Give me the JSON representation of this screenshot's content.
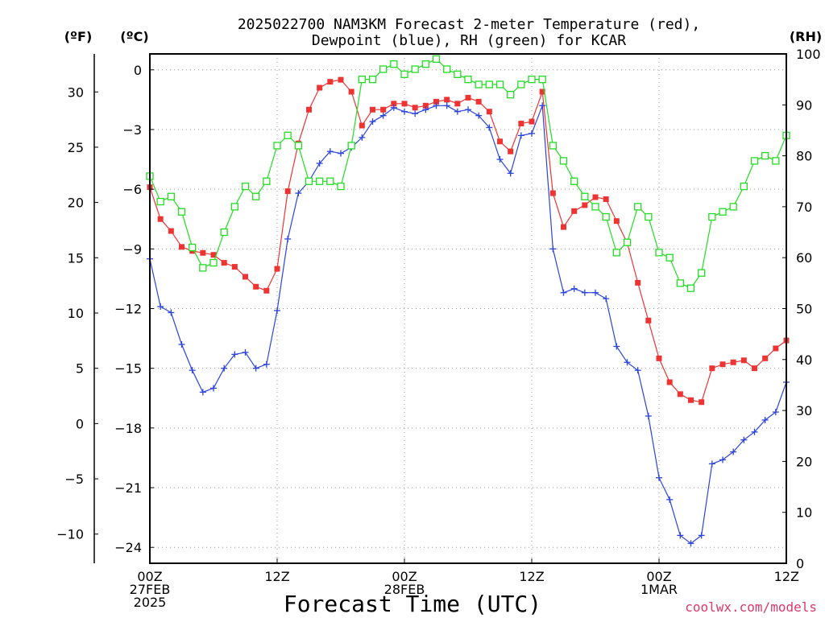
{
  "title_line1": "2025022700 NAM3KM Forecast 2-meter Temperature (red),",
  "title_line2": "Dewpoint (blue), RH (green) for KCAR",
  "unit_f": "(ºF)",
  "unit_c": "(ºC)",
  "unit_rh": "(RH)",
  "xlabel": "Forecast Time (UTC)",
  "credit": "coolwx.com/models",
  "chart_data": {
    "type": "line",
    "x_hours": [
      0,
      1,
      2,
      3,
      4,
      5,
      6,
      7,
      8,
      9,
      10,
      11,
      12,
      13,
      14,
      15,
      16,
      17,
      18,
      19,
      20,
      21,
      22,
      23,
      24,
      25,
      26,
      27,
      28,
      29,
      30,
      31,
      32,
      33,
      34,
      35,
      36,
      37,
      38,
      39,
      40,
      41,
      42,
      43,
      44,
      45,
      46,
      47,
      48,
      49,
      50,
      51,
      52,
      53,
      54,
      55,
      56,
      57,
      58,
      59,
      60
    ],
    "x_ticks": [
      {
        "hour": 0,
        "lines": [
          "00Z",
          "27FEB",
          "2025"
        ]
      },
      {
        "hour": 12,
        "lines": [
          "12Z"
        ]
      },
      {
        "hour": 24,
        "lines": [
          "00Z",
          "28FEB"
        ]
      },
      {
        "hour": 36,
        "lines": [
          "12Z"
        ]
      },
      {
        "hour": 48,
        "lines": [
          "00Z",
          "1MAR"
        ]
      },
      {
        "hour": 60,
        "lines": [
          "12Z"
        ]
      }
    ],
    "xlim": [
      0,
      60
    ],
    "ylim_c": [
      -24.8,
      0.8
    ],
    "yticks_c": [
      "0",
      "−3",
      "−6",
      "−9",
      "−12",
      "−15",
      "−18",
      "−21",
      "−24"
    ],
    "yticks_f": [
      "30",
      "25",
      "20",
      "15",
      "10",
      "5",
      "0",
      "−5",
      "−10"
    ],
    "yticks_rh": [
      "0",
      "10",
      "20",
      "30",
      "40",
      "50",
      "60",
      "70",
      "80",
      "90",
      "100"
    ],
    "grid": true,
    "series": [
      {
        "name": "Temperature",
        "unit": "C",
        "color": "#ee3333",
        "marker": "filled-square",
        "values": [
          -5.9,
          -7.5,
          -8.1,
          -8.9,
          -9.1,
          -9.2,
          -9.3,
          -9.7,
          -9.9,
          -10.4,
          -10.9,
          -11.1,
          -10.0,
          -6.1,
          -3.7,
          -2.0,
          -0.9,
          -0.6,
          -0.5,
          -1.1,
          -2.8,
          -2.0,
          -2.0,
          -1.7,
          -1.7,
          -1.9,
          -1.8,
          -1.6,
          -1.5,
          -1.7,
          -1.4,
          -1.6,
          -2.1,
          -3.6,
          -4.1,
          -2.7,
          -2.6,
          -1.1,
          -6.2,
          -7.9,
          -7.1,
          -6.8,
          -6.4,
          -6.5,
          -7.6,
          -8.7,
          -10.7,
          -12.6,
          -14.5,
          -15.7,
          -16.3,
          -16.6,
          -16.7,
          -15.0,
          -14.8,
          -14.7,
          -14.6,
          -15.0,
          -14.5,
          -14.0,
          -13.6
        ]
      },
      {
        "name": "Dewpoint",
        "unit": "C",
        "color": "#2b44dd",
        "marker": "plus",
        "values": [
          -9.5,
          -11.9,
          -12.2,
          -13.8,
          -15.1,
          -16.2,
          -16.0,
          -15.0,
          -14.3,
          -14.2,
          -15.0,
          -14.8,
          -12.1,
          -8.5,
          -6.2,
          -5.6,
          -4.7,
          -4.1,
          -4.2,
          -3.9,
          -3.4,
          -2.6,
          -2.3,
          -1.9,
          -2.1,
          -2.2,
          -2.0,
          -1.8,
          -1.8,
          -2.1,
          -2.0,
          -2.3,
          -2.9,
          -4.5,
          -5.2,
          -3.3,
          -3.2,
          -1.8,
          -9.0,
          -11.2,
          -11.0,
          -11.2,
          -11.2,
          -11.5,
          -13.9,
          -14.7,
          -15.1,
          -17.4,
          -20.5,
          -21.6,
          -23.4,
          -23.8,
          -23.4,
          -19.8,
          -19.6,
          -19.2,
          -18.6,
          -18.2,
          -17.6,
          -17.2,
          -15.7
        ]
      },
      {
        "name": "RH",
        "unit": "%",
        "color": "#22dd22",
        "marker": "open-square",
        "values": [
          76,
          71,
          72,
          69,
          62,
          58,
          59,
          65,
          70,
          74,
          72,
          75,
          82,
          84,
          82,
          75,
          75,
          75,
          74,
          82,
          95,
          95,
          97,
          98,
          96,
          97,
          98,
          99,
          97,
          96,
          95,
          94,
          94,
          94,
          92,
          94,
          95,
          95,
          82,
          79,
          75,
          72,
          70,
          68,
          61,
          63,
          70,
          68,
          61,
          60,
          55,
          54,
          57,
          68,
          69,
          70,
          74,
          79,
          80,
          79,
          84
        ]
      }
    ]
  }
}
